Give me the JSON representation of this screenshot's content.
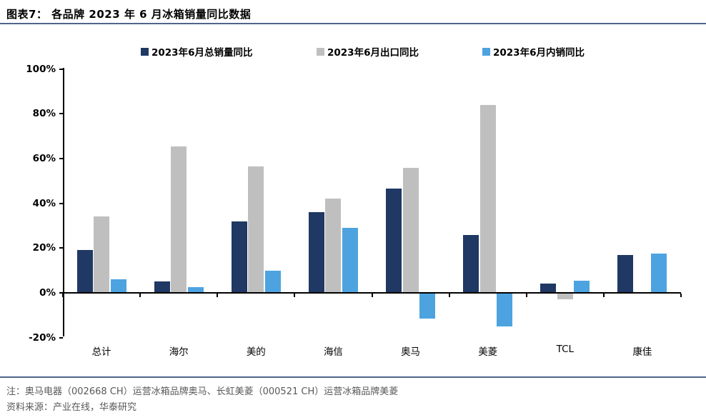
{
  "figure_label": "图表7：",
  "title": "图表7：  各品牌 2023 年 6 月冰箱销量同比数据",
  "notes": {
    "note1": "注：奥马电器（002668 CH）运营冰箱品牌奥马、长虹美菱（000521 CH）运营冰箱品牌美菱",
    "source": "资料来源：产业在线，华泰研究"
  },
  "colors": {
    "series_total": "#1F3864",
    "series_export": "#BFBFBF",
    "series_domestic": "#4DA3E0",
    "divider_rule": "#50648C",
    "note_text": "#595959",
    "axis": "#000000"
  },
  "chart_data": {
    "type": "bar",
    "title": "各品牌2023年6月冰箱销量同比数据",
    "categories": [
      "总计",
      "海尔",
      "美的",
      "海信",
      "奥马",
      "美菱",
      "TCL",
      "康佳"
    ],
    "series": [
      {
        "name": "2023年6月总销量同比",
        "color": "#1F3864",
        "values": [
          19,
          5,
          32,
          36,
          46.5,
          26,
          4,
          17
        ]
      },
      {
        "name": "2023年6月出口同比",
        "color": "#BFBFBF",
        "values": [
          34,
          65.5,
          56.5,
          42,
          56,
          84,
          -3,
          null
        ]
      },
      {
        "name": "2023年6月内销同比",
        "color": "#4DA3E0",
        "values": [
          6,
          2.5,
          10,
          29,
          -11.5,
          -15,
          5.5,
          17.5
        ]
      }
    ],
    "ylim": [
      -20,
      100
    ],
    "ytick_values": [
      100,
      80,
      60,
      40,
      20,
      0,
      -20
    ],
    "ytick_labels": [
      "100%",
      "80%",
      "60%",
      "40%",
      "20%",
      "0%",
      "-20%"
    ],
    "grid": false,
    "legend_position": "top",
    "unit": "%"
  }
}
